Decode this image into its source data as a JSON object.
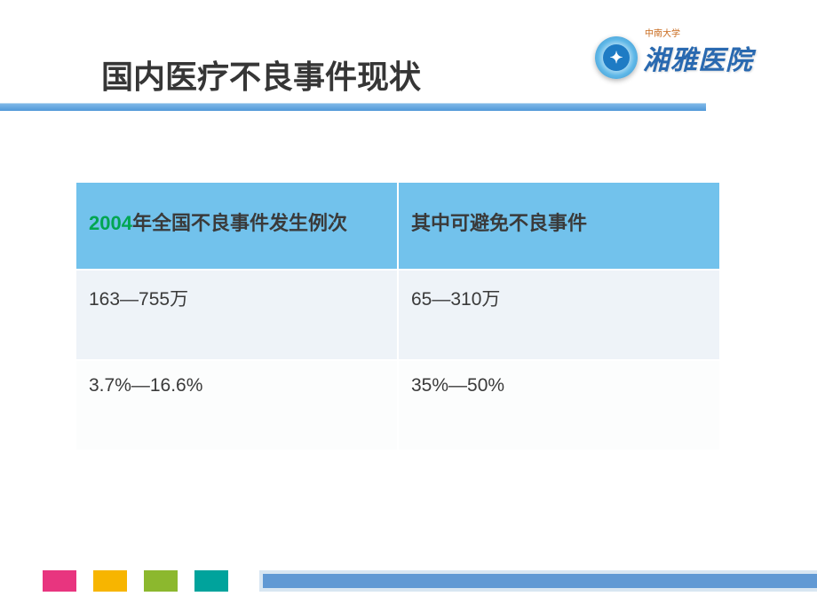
{
  "header": {
    "title": "国内医疗不良事件现状",
    "logo_small_text": "中南大学",
    "logo_main_text": "湘雅医院",
    "logo_badge_symbol": "✦"
  },
  "table": {
    "headers": {
      "col1_year": "2004",
      "col1_rest": "年全国不良事件发生例次",
      "col2": "其中可避免不良事件"
    },
    "rows": [
      {
        "col1": "163—755万",
        "col2": "65—310万"
      },
      {
        "col1": "3.7%—16.6%",
        "col2": "35%—50%"
      }
    ]
  },
  "colors": {
    "title_underline": "#5098d8",
    "table_header_bg": "#72c2ec",
    "year_color": "#00a651",
    "row_odd_bg": "#eef3f8",
    "row_even_bg": "#fcfdfd",
    "footer_blocks": [
      "#e8357f",
      "#f7b500",
      "#8cb82e",
      "#00a39c"
    ],
    "footer_bar": "#6199d4"
  }
}
